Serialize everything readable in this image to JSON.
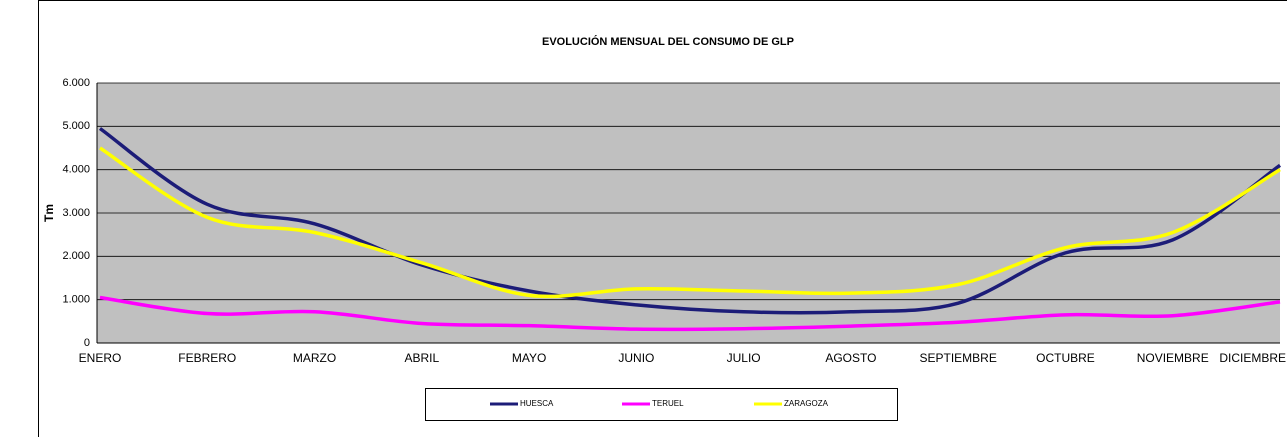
{
  "chart_data": {
    "type": "line",
    "title": "EVOLUCIÓN MENSUAL DEL CONSUMO DE GLP",
    "ylabel": "Tm",
    "categories": [
      "ENERO",
      "FEBRERO",
      "MARZO",
      "ABRIL",
      "MAYO",
      "JUNIO",
      "JULIO",
      "AGOSTO",
      "SEPTIEMBRE",
      "OCTUBRE",
      "NOVIEMBRE",
      "DICIEMBRE"
    ],
    "series": [
      {
        "name": "HUESCA",
        "color": "#1c1c78",
        "values": [
          4950,
          3200,
          2750,
          1800,
          1200,
          880,
          720,
          720,
          920,
          2080,
          2380,
          4100
        ]
      },
      {
        "name": "TERUEL",
        "color": "#ff00ff",
        "values": [
          1050,
          680,
          720,
          450,
          400,
          320,
          330,
          390,
          480,
          650,
          630,
          950
        ]
      },
      {
        "name": "ZARAGOZA",
        "color": "#ffff00",
        "values": [
          4500,
          2900,
          2550,
          1850,
          1100,
          1250,
          1200,
          1150,
          1350,
          2200,
          2550,
          4000
        ]
      }
    ],
    "ylim": [
      0,
      6000
    ],
    "yticks": [
      0,
      {
        "value": 1000,
        "label": "1.000"
      },
      {
        "value": 2000,
        "label": "2.000"
      },
      {
        "value": 3000,
        "label": "3.000"
      },
      {
        "value": 4000,
        "label": "4.000"
      },
      {
        "value": 5000,
        "label": "5.000"
      },
      {
        "value": 6000,
        "label": "6.000"
      }
    ],
    "grid": true
  }
}
